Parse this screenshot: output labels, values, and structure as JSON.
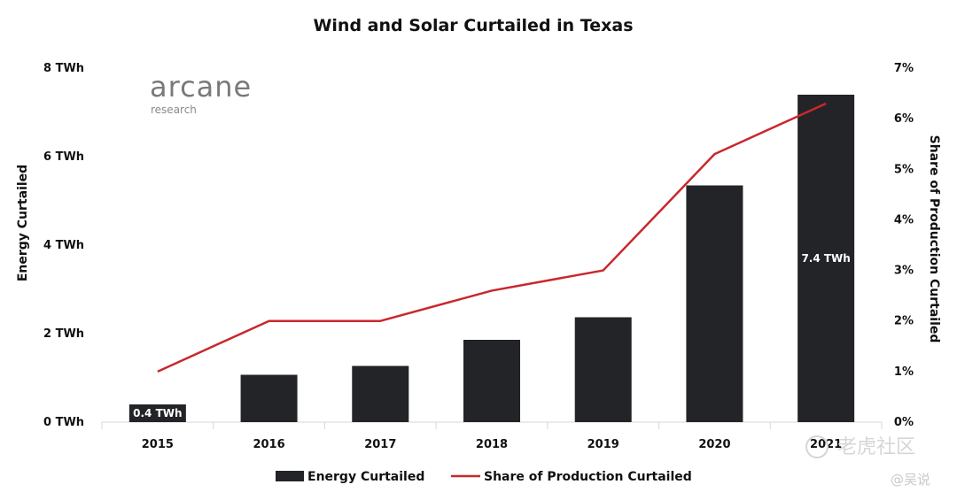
{
  "chart_data": {
    "type": "bar",
    "title": "Wind and Solar Curtailed in Texas",
    "categories": [
      "2015",
      "2016",
      "2017",
      "2018",
      "2019",
      "2020",
      "2021"
    ],
    "series": [
      {
        "name": "Energy Curtailed",
        "type": "bar",
        "axis": "left",
        "values": [
          0.4,
          1.07,
          1.27,
          1.86,
          2.37,
          5.35,
          7.4
        ],
        "color": "#222428"
      },
      {
        "name": "Share of Production Curtailed",
        "type": "line",
        "axis": "right",
        "values": [
          1.0,
          2.0,
          2.0,
          2.6,
          3.0,
          5.3,
          6.3
        ],
        "color": "#c8282d"
      }
    ],
    "ylabel": "Energy Curtailed",
    "ylim": [
      0,
      8
    ],
    "yticks": [
      "0 TWh",
      "2 TWh",
      "4 TWh",
      "6 TWh",
      "8 TWh"
    ],
    "y2label": "Share of Production Curtailed",
    "y2lim": [
      0,
      7
    ],
    "y2ticks": [
      "0%",
      "1%",
      "2%",
      "3%",
      "4%",
      "5%",
      "6%",
      "7%"
    ],
    "data_labels": [
      {
        "category": "2015",
        "text": "0.4 TWh"
      },
      {
        "category": "2021",
        "text": "7.4 TWh"
      }
    ],
    "legend_position": "bottom",
    "grid": false
  },
  "logo": {
    "main": "arcane",
    "sub": "research"
  },
  "watermark": {
    "main": "老虎社区",
    "sub": "@吴说"
  }
}
